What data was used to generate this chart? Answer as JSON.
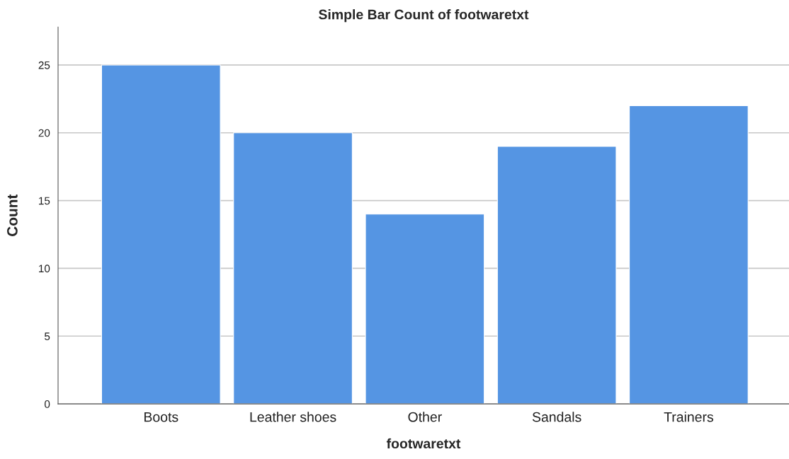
{
  "chart_data": {
    "type": "bar",
    "title": "Simple Bar Count of footwaretxt",
    "xlabel": "footwaretxt",
    "ylabel": "Count",
    "categories": [
      "Boots",
      "Leather shoes",
      "Other",
      "Sandals",
      "Trainers"
    ],
    "values": [
      25,
      20,
      14,
      19,
      22
    ],
    "color": "#5595e3",
    "ylim": [
      0,
      27.8
    ],
    "yticks": [
      0,
      5,
      10,
      15,
      20,
      25
    ],
    "grid": "y"
  }
}
